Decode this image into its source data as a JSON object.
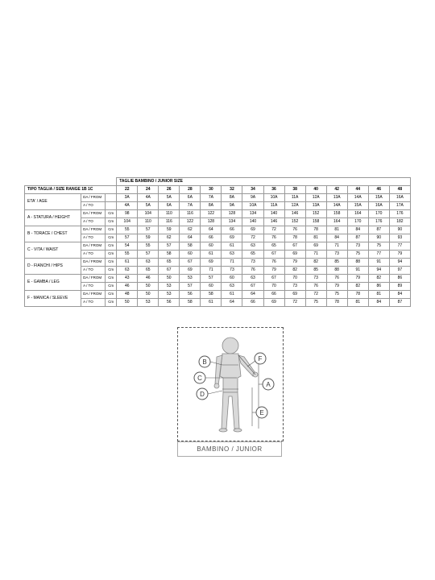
{
  "table": {
    "top_title": "TAGLIE BAMBINO / JUNIOR SIZE",
    "range_title": "TIPO TAGLIA / SIZE RANGE 1B 1C",
    "sizes": [
      "22",
      "24",
      "26",
      "28",
      "30",
      "32",
      "34",
      "36",
      "38",
      "40",
      "42",
      "44",
      "46",
      "48"
    ],
    "blocks": [
      {
        "label": "ETA' / AGE",
        "unit": "",
        "from": [
          "3A",
          "4A",
          "5A",
          "6A",
          "7A",
          "8A",
          "9A",
          "10A",
          "11A",
          "12A",
          "13A",
          "14A",
          "15A",
          "16A"
        ],
        "to": [
          "4A",
          "5A",
          "6A",
          "7A",
          "8A",
          "9A",
          "10A",
          "11A",
          "12A",
          "13A",
          "14A",
          "15A",
          "16A",
          "17A"
        ]
      },
      {
        "label": "A - STATURA / HEIGHT",
        "unit": "Cm",
        "from": [
          "98",
          "104",
          "110",
          "116",
          "122",
          "128",
          "134",
          "140",
          "146",
          "152",
          "158",
          "164",
          "170",
          "176"
        ],
        "to": [
          "104",
          "110",
          "116",
          "122",
          "128",
          "134",
          "140",
          "146",
          "152",
          "158",
          "164",
          "170",
          "176",
          "182"
        ]
      },
      {
        "label": "B - TORACE / CHEST",
        "unit": "Cm",
        "from": [
          "55",
          "57",
          "59",
          "62",
          "64",
          "66",
          "69",
          "72",
          "76",
          "78",
          "81",
          "84",
          "87",
          "90"
        ],
        "to": [
          "57",
          "59",
          "62",
          "64",
          "66",
          "69",
          "72",
          "76",
          "78",
          "81",
          "84",
          "87",
          "90",
          "93"
        ]
      },
      {
        "label": "C - VITA / WAIST",
        "unit": "Cm",
        "from": [
          "54",
          "55",
          "57",
          "58",
          "60",
          "61",
          "63",
          "65",
          "67",
          "69",
          "71",
          "73",
          "75",
          "77"
        ],
        "to": [
          "55",
          "57",
          "58",
          "60",
          "61",
          "63",
          "65",
          "67",
          "69",
          "71",
          "73",
          "75",
          "77",
          "79"
        ]
      },
      {
        "label": "D - FIANCHI / HIPS",
        "unit": "Cm",
        "from": [
          "61",
          "63",
          "65",
          "67",
          "69",
          "71",
          "73",
          "76",
          "79",
          "82",
          "85",
          "88",
          "91",
          "94"
        ],
        "to": [
          "63",
          "65",
          "67",
          "69",
          "71",
          "73",
          "76",
          "79",
          "82",
          "85",
          "88",
          "91",
          "94",
          "97"
        ]
      },
      {
        "label": "E - GAMBA / LEG",
        "unit": "Cm",
        "from": [
          "43",
          "46",
          "50",
          "53",
          "57",
          "60",
          "63",
          "67",
          "70",
          "73",
          "76",
          "79",
          "82",
          "86"
        ],
        "to": [
          "46",
          "50",
          "53",
          "57",
          "60",
          "63",
          "67",
          "70",
          "73",
          "76",
          "79",
          "82",
          "86",
          "89"
        ]
      },
      {
        "label": "F - MANICA / SLEEVE",
        "unit": "Cm",
        "from": [
          "48",
          "50",
          "53",
          "56",
          "58",
          "61",
          "64",
          "66",
          "69",
          "72",
          "75",
          "78",
          "81",
          "84"
        ],
        "to": [
          "50",
          "53",
          "56",
          "58",
          "61",
          "64",
          "66",
          "69",
          "72",
          "75",
          "78",
          "81",
          "84",
          "87"
        ]
      }
    ],
    "da_label": "DA / FROM",
    "a_label": "A / TO"
  },
  "diagram": {
    "caption": "BAMBINO / JUNIOR",
    "letters": {
      "A": "A",
      "B": "B",
      "C": "C",
      "D": "D",
      "E": "E",
      "F": "F"
    }
  },
  "colors": {
    "border": "#999999",
    "text": "#000000",
    "figure": "#cccccc",
    "figure_stroke": "#888888"
  }
}
